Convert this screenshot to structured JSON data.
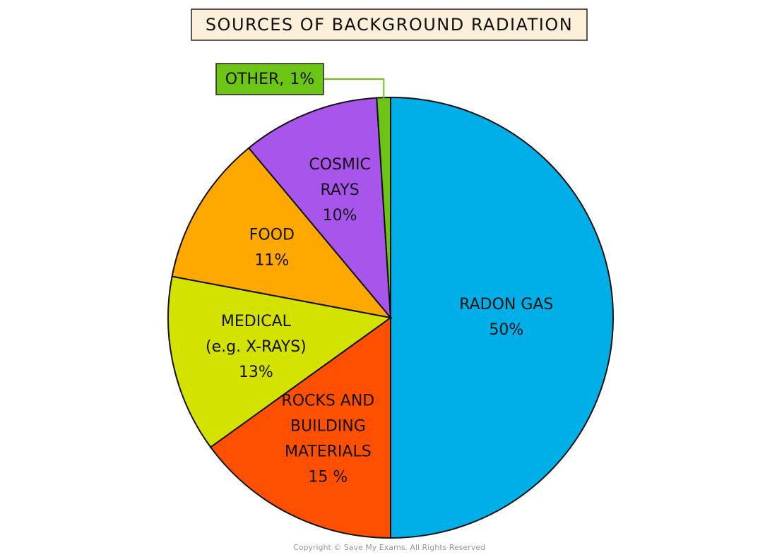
{
  "chart_data": {
    "type": "pie",
    "title": "SOURCES OF BACKGROUND RADIATION",
    "categories": [
      "RADON GAS",
      "ROCKS AND\nBUILDING\nMATERIALS",
      "MEDICAL\n(e.g. X-RAYS)",
      "FOOD",
      "COSMIC\nRAYS",
      "OTHER,"
    ],
    "values": [
      50,
      15,
      13,
      11,
      10,
      1
    ],
    "value_labels": [
      "50%",
      "15 %",
      "13%",
      "11%",
      "10%",
      "1%"
    ],
    "colors": [
      "#00aee8",
      "#ff4f00",
      "#d4e200",
      "#ffa800",
      "#a855ec",
      "#6cc514"
    ],
    "footnote": "Copyright © Save My Exams. All Rights Reserved"
  }
}
